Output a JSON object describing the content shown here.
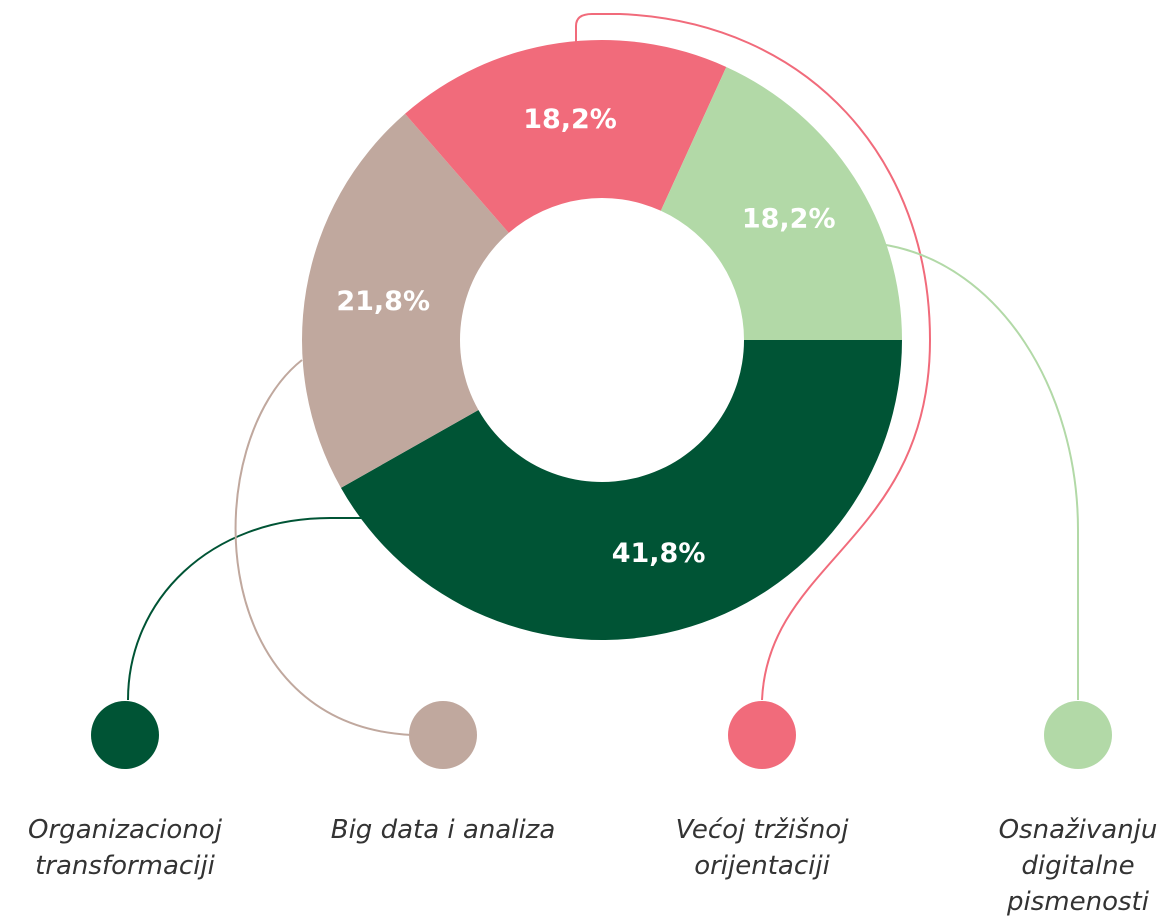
{
  "chart_data": {
    "type": "donut",
    "categories": [
      "Organizacionoj transformaciji",
      "Big data i analiza",
      "Većoj tržišnoj orijentaciji",
      "Osnaživanju digitalne pismenosti"
    ],
    "values": [
      41.8,
      21.8,
      18.2,
      18.2
    ],
    "value_labels": [
      "41,8%",
      "21,8%",
      "18,2%",
      "18,2%"
    ],
    "colors": [
      "#005435",
      "#c0a89e",
      "#f16b7b",
      "#b2d9a7"
    ]
  }
}
